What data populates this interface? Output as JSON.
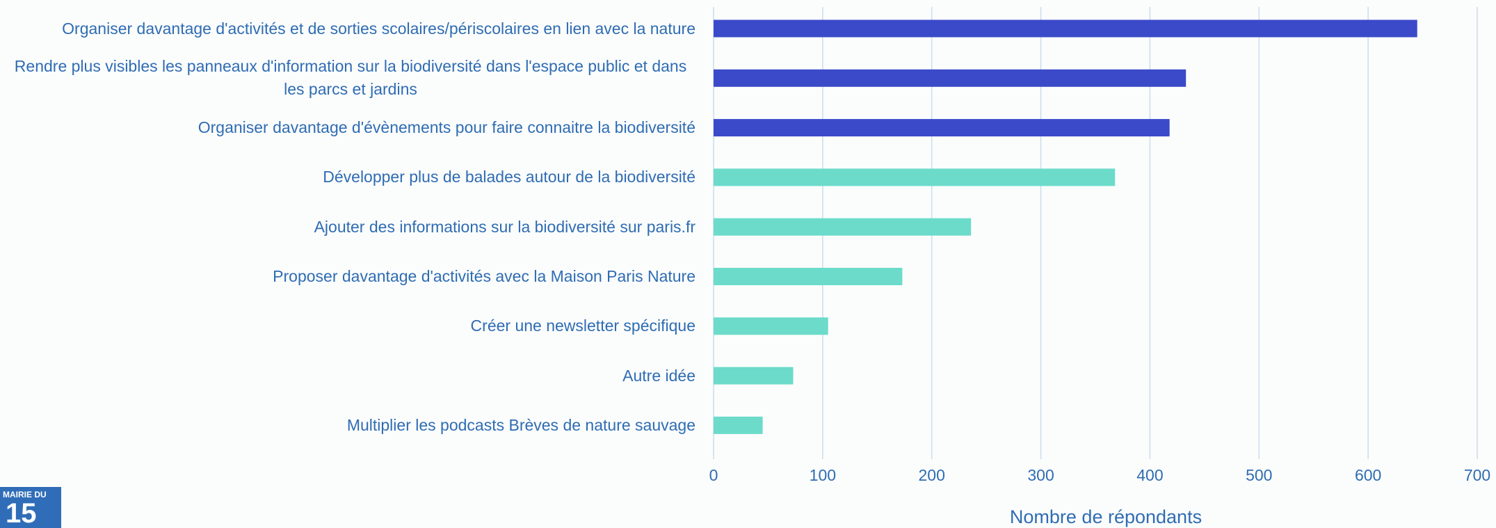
{
  "chart_data": {
    "type": "barh",
    "categories": [
      "Organiser davantage d'activités et de sorties scolaires/périscolaires en lien avec la nature",
      "Rendre plus visibles les panneaux d'information sur la biodiversité dans l'espace public et dans les parcs et jardins",
      "Organiser davantage d'évènements pour faire connaitre la biodiversité",
      "Développer plus de balades autour de la biodiversité",
      "Ajouter des informations sur la biodiversité sur paris.fr",
      "Proposer davantage d'activités avec la Maison Paris Nature",
      "Créer une newsletter spécifique",
      "Autre idée",
      "Multiplier les podcasts Brèves de nature sauvage"
    ],
    "values": [
      645,
      433,
      418,
      368,
      236,
      173,
      105,
      73,
      45
    ],
    "colors": [
      "#3a4ac9",
      "#3a4ac9",
      "#3a4ac9",
      "#6cdbca",
      "#6cdbca",
      "#6cdbca",
      "#6cdbca",
      "#6cdbca",
      "#6cdbca"
    ],
    "xlabel": "Nombre de répondants",
    "xlim": [
      0,
      700
    ],
    "xticks": [
      0,
      100,
      200,
      300,
      400,
      500,
      600,
      700
    ],
    "grid": true
  },
  "logo": {
    "text": "MAIRIE DU",
    "number": "15"
  }
}
